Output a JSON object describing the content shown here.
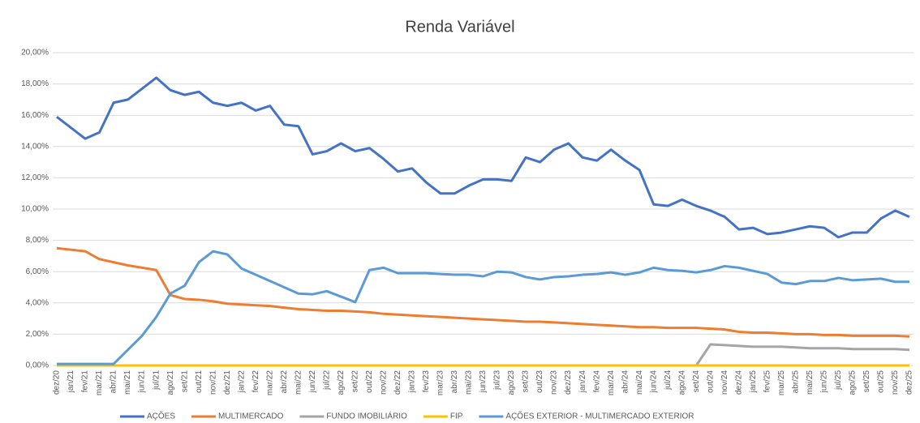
{
  "chart_data": {
    "type": "line",
    "title": "Renda Variável",
    "categories": [
      "dez/20",
      "jan/21",
      "fev/21",
      "mar/21",
      "abr/21",
      "mai/21",
      "jun/21",
      "jul/21",
      "ago/21",
      "set/21",
      "out/21",
      "nov/21",
      "dez/21",
      "jan/22",
      "fev/22",
      "mar/22",
      "abr/22",
      "mai/22",
      "jun/22",
      "jul/22",
      "ago/22",
      "set/22",
      "out/22",
      "nov/22",
      "dez/22",
      "jan/23",
      "fev/23",
      "mar/23",
      "abr/23",
      "mai/23",
      "jun/23",
      "jul/23",
      "ago/23",
      "set/23",
      "out/23",
      "nov/23",
      "dez/23",
      "jan/24",
      "fev/24",
      "mar/24",
      "abr/24",
      "mai/24",
      "jun/24",
      "jul/24",
      "ago/24",
      "set/24",
      "out/24",
      "nov/24",
      "dez/24",
      "jan/25",
      "fev/25",
      "mar/25",
      "abr/25",
      "mai/25",
      "jun/25",
      "jul/25",
      "ago/25",
      "set/25",
      "out/25",
      "nov/25",
      "dez/25"
    ],
    "series": [
      {
        "name": "AÇÕES",
        "color": "#4472c4",
        "values": [
          15.9,
          15.2,
          14.5,
          14.9,
          16.8,
          17.0,
          17.7,
          18.4,
          17.6,
          17.3,
          17.5,
          16.8,
          16.6,
          16.8,
          16.3,
          16.6,
          15.4,
          15.3,
          13.5,
          13.7,
          14.2,
          13.7,
          13.9,
          13.2,
          12.4,
          12.6,
          11.7,
          11.0,
          11.0,
          11.5,
          11.9,
          11.9,
          11.8,
          13.3,
          13.0,
          13.8,
          14.2,
          13.3,
          13.1,
          13.8,
          13.1,
          12.5,
          10.3,
          10.2,
          10.6,
          10.2,
          9.9,
          9.5,
          8.7,
          8.8,
          8.4,
          8.5,
          8.7,
          8.9,
          8.8,
          8.2,
          8.5,
          8.5,
          9.4,
          9.9,
          9.5
        ]
      },
      {
        "name": "MULTIMERCADO",
        "color": "#ed7d31",
        "values": [
          7.5,
          7.4,
          7.3,
          6.8,
          6.6,
          6.4,
          6.25,
          6.1,
          4.5,
          4.25,
          4.2,
          4.1,
          3.95,
          3.9,
          3.85,
          3.8,
          3.7,
          3.6,
          3.55,
          3.5,
          3.5,
          3.45,
          3.4,
          3.3,
          3.25,
          3.2,
          3.15,
          3.1,
          3.05,
          3.0,
          2.95,
          2.9,
          2.85,
          2.8,
          2.8,
          2.75,
          2.7,
          2.65,
          2.6,
          2.55,
          2.5,
          2.45,
          2.45,
          2.4,
          2.4,
          2.4,
          2.35,
          2.3,
          2.15,
          2.1,
          2.1,
          2.05,
          2.0,
          2.0,
          1.95,
          1.95,
          1.9,
          1.9,
          1.9,
          1.9,
          1.85
        ]
      },
      {
        "name": "FUNDO IMOBILIÁRIO",
        "color": "#a5a5a5",
        "values": [
          0,
          0,
          0,
          0,
          0,
          0,
          0,
          0,
          0,
          0,
          0,
          0,
          0,
          0,
          0,
          0,
          0,
          0,
          0,
          0,
          0,
          0,
          0,
          0,
          0,
          0,
          0,
          0,
          0,
          0,
          0,
          0,
          0,
          0,
          0,
          0,
          0,
          0,
          0,
          0,
          0,
          0,
          0,
          0,
          0,
          0,
          1.35,
          1.3,
          1.25,
          1.2,
          1.2,
          1.2,
          1.15,
          1.1,
          1.1,
          1.1,
          1.05,
          1.05,
          1.05,
          1.05,
          1.0
        ]
      },
      {
        "name": "FIP",
        "color": "#ffc000",
        "values": [
          0,
          0,
          0,
          0,
          0,
          0,
          0,
          0,
          0,
          0,
          0,
          0,
          0,
          0,
          0,
          0,
          0,
          0,
          0,
          0,
          0,
          0,
          0,
          0,
          0,
          0,
          0,
          0,
          0,
          0,
          0,
          0,
          0,
          0,
          0,
          0,
          0,
          0,
          0,
          0,
          0,
          0,
          0,
          0,
          0,
          0,
          0,
          0,
          0,
          0,
          0,
          0,
          0,
          0,
          0,
          0,
          0,
          0,
          0,
          0,
          0
        ]
      },
      {
        "name": "AÇÕES EXTERIOR - MULTIMERCADO EXTERIOR",
        "color": "#5b9bd5",
        "values": [
          0.1,
          0.1,
          0.1,
          0.1,
          0.1,
          1.0,
          1.9,
          3.1,
          4.6,
          5.1,
          6.6,
          7.3,
          7.1,
          6.2,
          5.8,
          5.4,
          5.0,
          4.6,
          4.55,
          4.75,
          4.4,
          4.05,
          6.1,
          6.25,
          5.9,
          5.9,
          5.9,
          5.85,
          5.8,
          5.8,
          5.7,
          6.0,
          5.95,
          5.65,
          5.5,
          5.65,
          5.7,
          5.8,
          5.85,
          5.95,
          5.8,
          5.95,
          6.25,
          6.1,
          6.05,
          5.95,
          6.1,
          6.35,
          6.25,
          6.05,
          5.85,
          5.3,
          5.2,
          5.4,
          5.4,
          5.6,
          5.45,
          5.5,
          5.55,
          5.35,
          5.35
        ]
      }
    ],
    "ylim": [
      0,
      20
    ],
    "yticks": [
      {
        "value": 0,
        "label": "0,00%"
      },
      {
        "value": 2,
        "label": "2,00%"
      },
      {
        "value": 4,
        "label": "4,00%"
      },
      {
        "value": 6,
        "label": "6,00%"
      },
      {
        "value": 8,
        "label": "8,00%"
      },
      {
        "value": 10,
        "label": "10,00%"
      },
      {
        "value": 12,
        "label": "12,00%"
      },
      {
        "value": 14,
        "label": "14,00%"
      },
      {
        "value": 16,
        "label": "16,00%"
      },
      {
        "value": 18,
        "label": "18,00%"
      },
      {
        "value": 20,
        "label": "20,00%"
      }
    ],
    "grid": true,
    "legend": "bottom"
  }
}
